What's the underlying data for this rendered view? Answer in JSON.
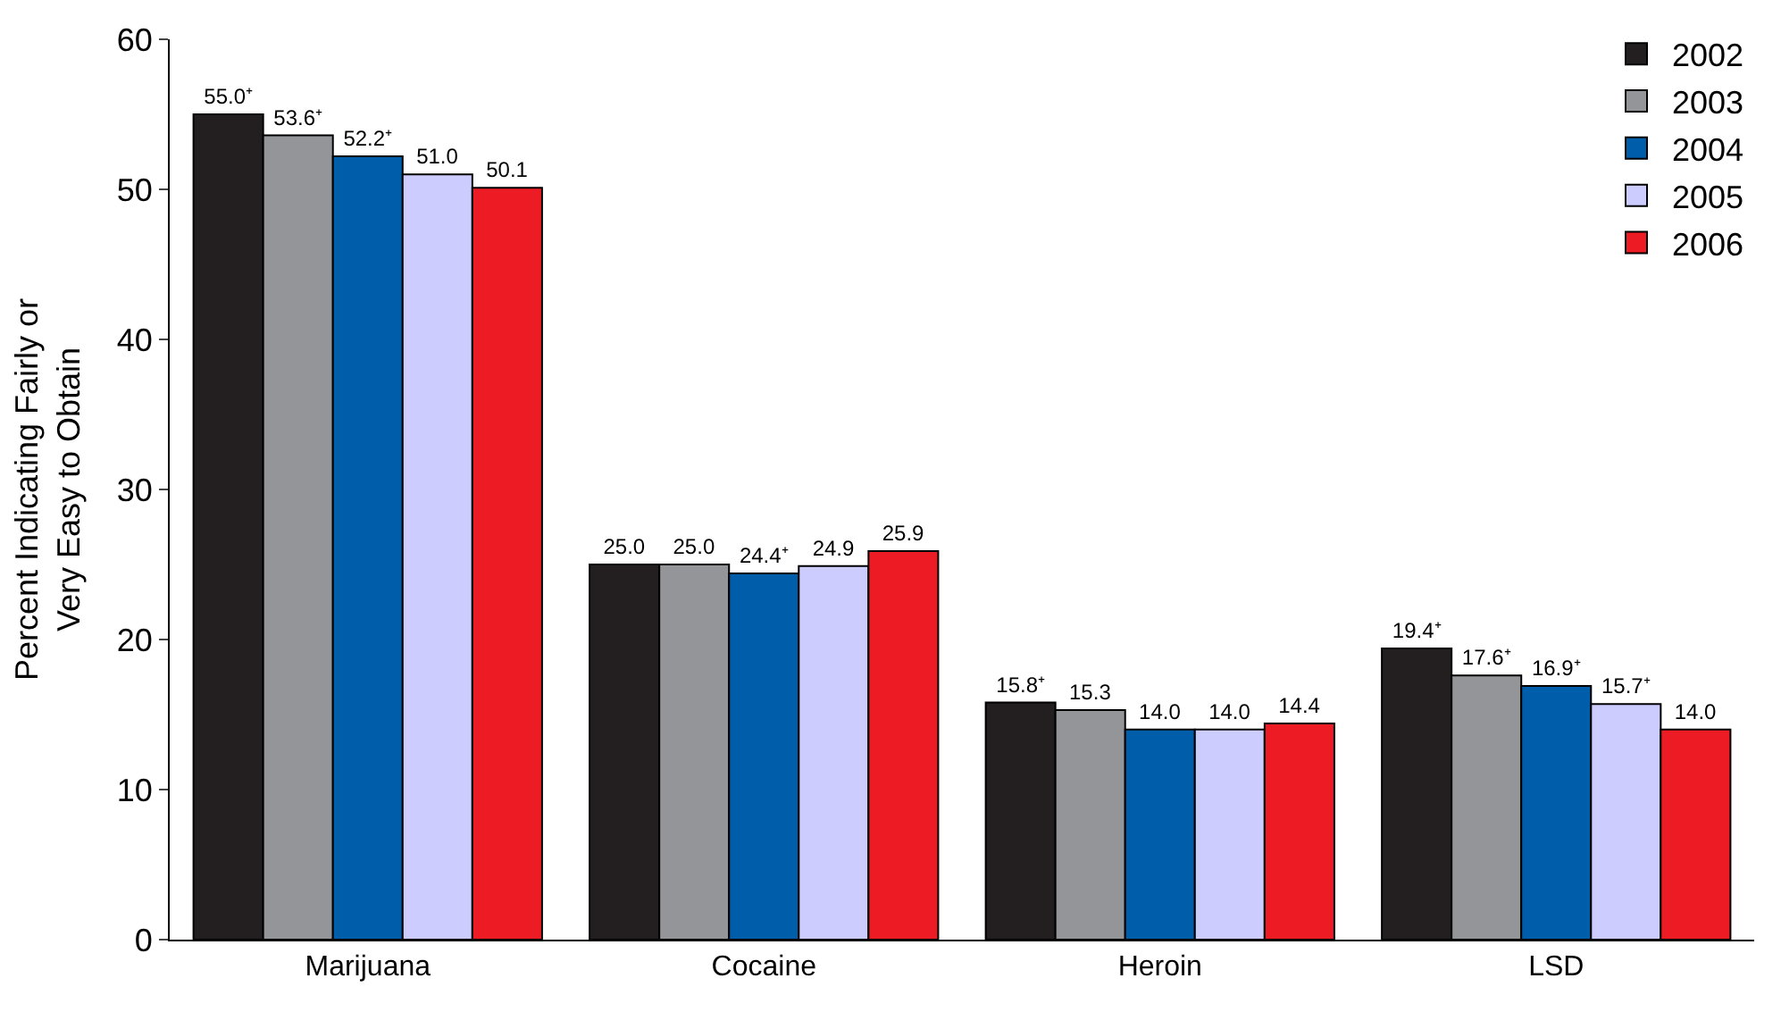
{
  "chart_data": {
    "type": "bar",
    "ylabel": "Percent Indicating Fairly or\nVery Easy to Obtain",
    "categories": [
      "Marijuana",
      "Cocaine",
      "Heroin",
      "LSD"
    ],
    "series": [
      {
        "name": "2002",
        "color": "#231f20",
        "values": [
          55.0,
          25.0,
          15.8,
          19.4
        ],
        "value_labels": [
          "55.0⁺",
          "25.0",
          "15.8⁺",
          "19.4⁺"
        ]
      },
      {
        "name": "2003",
        "color": "#939598",
        "values": [
          53.6,
          25.0,
          15.3,
          17.6
        ],
        "value_labels": [
          "53.6⁺",
          "25.0",
          "15.3",
          "17.6⁺"
        ]
      },
      {
        "name": "2004",
        "color": "#005daa",
        "values": [
          52.2,
          24.4,
          14.0,
          16.9
        ],
        "value_labels": [
          "52.2⁺",
          "24.4⁺",
          "14.0",
          "16.9⁺"
        ]
      },
      {
        "name": "2005",
        "color": "#ccccff",
        "values": [
          51.0,
          24.9,
          14.0,
          15.7
        ],
        "value_labels": [
          "51.0",
          "24.9",
          "14.0",
          "15.7⁺"
        ]
      },
      {
        "name": "2006",
        "color": "#ed1c24",
        "values": [
          50.1,
          25.9,
          14.4,
          14.0
        ],
        "value_labels": [
          "50.1",
          "25.9",
          "14.4",
          "14.0"
        ]
      }
    ],
    "ylim": [
      0,
      60
    ],
    "yticks": [
      0,
      10,
      20,
      30,
      40,
      50,
      60
    ],
    "legend": "top right"
  }
}
